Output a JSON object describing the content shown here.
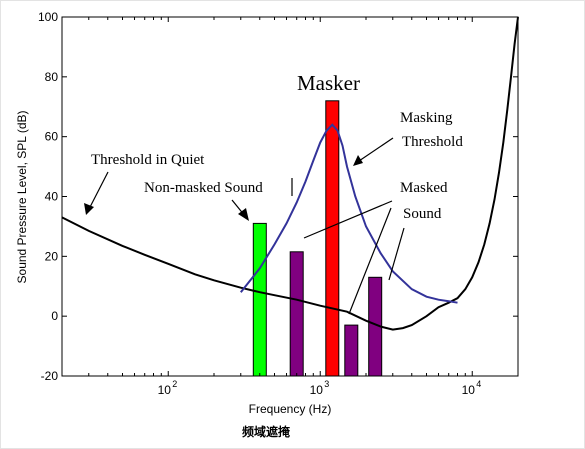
{
  "chart_data": {
    "type": "bar",
    "xlabel": "Frequency (Hz)",
    "ylabel": "Sound Pressure Level, SPL (dB)",
    "xscale": "log",
    "xlim": [
      20,
      20000
    ],
    "ylim": [
      -20,
      100
    ],
    "yticks": [
      "-20",
      "0",
      "20",
      "40",
      "60",
      "80",
      "100"
    ],
    "xticks": [
      {
        "value": 100,
        "base": "10",
        "exp": "2"
      },
      {
        "value": 1000,
        "base": "10",
        "exp": "3"
      },
      {
        "value": 10000,
        "base": "10",
        "exp": "4"
      }
    ],
    "grid": false,
    "caption": "频域遮掩",
    "threshold_in_quiet": {
      "x": [
        20,
        30,
        50,
        70,
        100,
        150,
        200,
        300,
        400,
        500,
        700,
        1000,
        1500,
        2000,
        2500,
        3000,
        3500,
        4000,
        5000,
        6000,
        7000,
        8000,
        9000,
        10000,
        11000,
        12000,
        13000,
        14000,
        15000,
        16000,
        17000,
        18000,
        19000,
        20000
      ],
      "y": [
        33,
        28.5,
        23.5,
        20.5,
        17.5,
        14,
        12,
        9.5,
        8,
        7,
        5.5,
        3.5,
        1.5,
        -1.5,
        -3.5,
        -4.5,
        -4,
        -3,
        0,
        3,
        4.5,
        6,
        9,
        13,
        18,
        24,
        31,
        39,
        48,
        58,
        69,
        80,
        91,
        100
      ]
    },
    "masking_threshold": {
      "x": [
        300,
        400,
        500,
        600,
        700,
        800,
        900,
        1000,
        1100,
        1200,
        1300,
        1400,
        1500,
        1700,
        2000,
        2500,
        3000,
        4000,
        5000,
        6000,
        7000,
        8000
      ],
      "y": [
        8,
        16,
        24,
        31,
        38,
        45,
        52,
        58,
        62,
        64,
        62,
        57,
        50,
        40,
        30,
        21,
        15,
        9,
        6.5,
        5.5,
        5,
        4.5
      ]
    },
    "bars": [
      {
        "x": 400,
        "value": 31,
        "color": "#00ff00",
        "kind": "non-masked"
      },
      {
        "x": 700,
        "value": 21.5,
        "color": "#800080",
        "kind": "masked"
      },
      {
        "x": 1200,
        "value": 72,
        "color": "#ff0000",
        "kind": "masker"
      },
      {
        "x": 1600,
        "value": -3,
        "color": "#800080",
        "kind": "masked"
      },
      {
        "x": 2300,
        "value": 13,
        "color": "#800080",
        "kind": "masked"
      }
    ],
    "annotations": {
      "masker": "Masker",
      "masking_threshold_1": "Masking",
      "masking_threshold_2": "Threshold",
      "threshold_in_quiet": "Threshold in Quiet",
      "non_masked": "Non-masked Sound",
      "masked_1": "Masked",
      "masked_2": "Sound"
    },
    "colors": {
      "threshold_in_quiet": "#000000",
      "masking_threshold": "#33339a"
    }
  }
}
